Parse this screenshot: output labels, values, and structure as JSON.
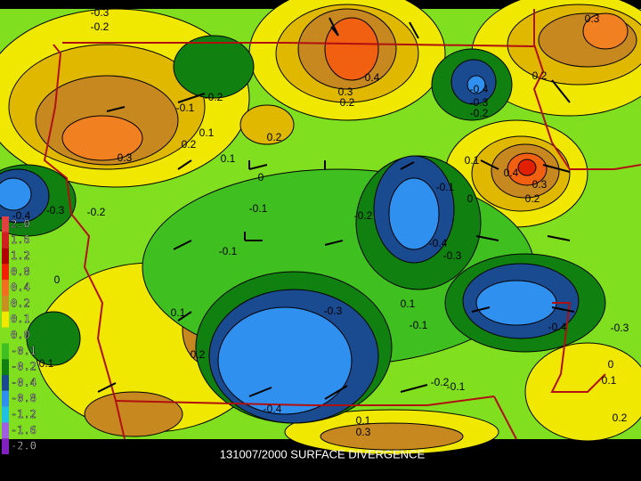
{
  "caption": "131007/2000 SURFACE DIVERGENCE",
  "legend": [
    "2.0",
    "1.6",
    "1.2",
    "0.8",
    "0.4",
    "0.2",
    "0.1",
    "0.0",
    "-0.1",
    "-0.2",
    "-0.4",
    "-0.8",
    "-1.2",
    "-1.6",
    "-2.0"
  ],
  "contour_labels": [
    "-0.3",
    "-0.2",
    "0.3",
    "0.4",
    "0.3",
    "0.2",
    "-0.2",
    "-0.1",
    "-0.4",
    "-0.3",
    "-0.2",
    "0.2",
    "0.1",
    "0.2",
    "0.2",
    "0.1",
    "0.3",
    "0",
    "0.1",
    "0.4",
    "0.3",
    "0.2",
    "0",
    "-0.1",
    "-0.4",
    "-0.3",
    "-0.2",
    "-0.1",
    "-0.2",
    "-0.4",
    "-0.3",
    "-0.1",
    "0",
    "-0.3",
    "0.1",
    "-0.1",
    "0.1",
    "-0.4",
    "-0.3",
    "0.2",
    "0.1",
    "-0.2",
    "-0.1",
    "0",
    "0.1",
    "-0.4",
    "0.1",
    "0.3",
    "0.2"
  ]
}
